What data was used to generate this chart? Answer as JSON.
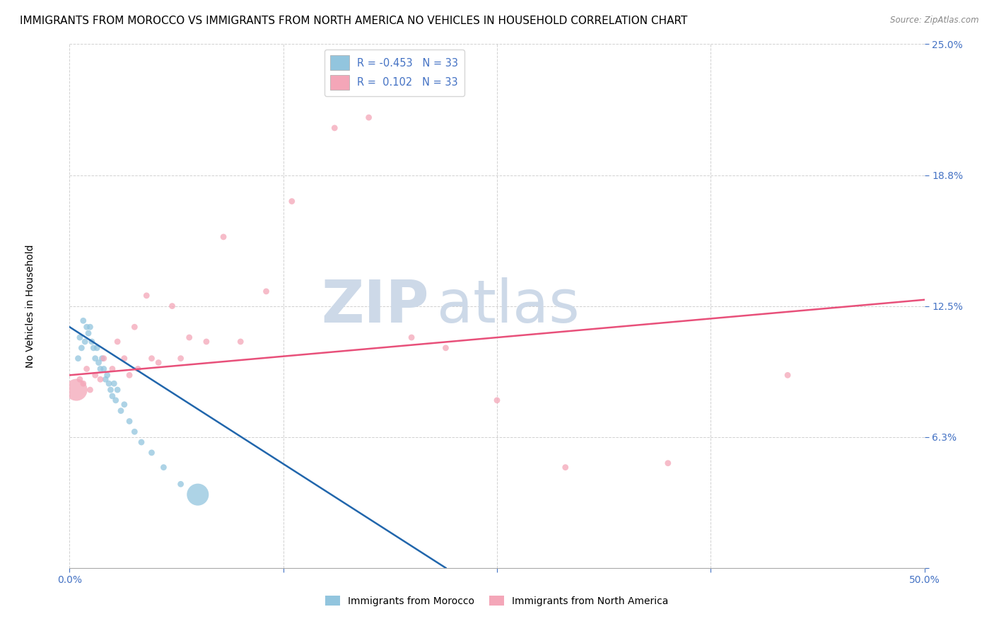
{
  "title": "IMMIGRANTS FROM MOROCCO VS IMMIGRANTS FROM NORTH AMERICA NO VEHICLES IN HOUSEHOLD CORRELATION CHART",
  "source": "Source: ZipAtlas.com",
  "ylabel_label": "No Vehicles in Household",
  "xlabel_label_blue": "Immigrants from Morocco",
  "xlabel_label_pink": "Immigrants from North America",
  "legend_blue_r": "-0.453",
  "legend_blue_n": "33",
  "legend_pink_r": "0.102",
  "legend_pink_n": "33",
  "xlim": [
    0.0,
    0.5
  ],
  "ylim": [
    0.0,
    0.25
  ],
  "blue_color": "#92c5de",
  "pink_color": "#f4a6b8",
  "blue_line_color": "#2166ac",
  "pink_line_color": "#e8507a",
  "watermark_zip": "ZIP",
  "watermark_atlas": "atlas",
  "grid_color": "#cccccc",
  "background_color": "#ffffff",
  "title_fontsize": 11,
  "axis_label_fontsize": 10,
  "tick_fontsize": 10,
  "tick_color": "#4472c4",
  "watermark_color": "#cdd9e8",
  "watermark_fontsize": 60,
  "blue_scatter_x": [
    0.005,
    0.006,
    0.007,
    0.008,
    0.009,
    0.01,
    0.011,
    0.012,
    0.013,
    0.014,
    0.015,
    0.016,
    0.017,
    0.018,
    0.019,
    0.02,
    0.021,
    0.022,
    0.023,
    0.024,
    0.025,
    0.026,
    0.027,
    0.028,
    0.03,
    0.032,
    0.035,
    0.038,
    0.042,
    0.048,
    0.055,
    0.065,
    0.075
  ],
  "blue_scatter_y": [
    0.1,
    0.11,
    0.105,
    0.118,
    0.108,
    0.115,
    0.112,
    0.115,
    0.108,
    0.105,
    0.1,
    0.105,
    0.098,
    0.095,
    0.1,
    0.095,
    0.09,
    0.092,
    0.088,
    0.085,
    0.082,
    0.088,
    0.08,
    0.085,
    0.075,
    0.078,
    0.07,
    0.065,
    0.06,
    0.055,
    0.048,
    0.04,
    0.035
  ],
  "blue_scatter_size": [
    40,
    40,
    40,
    40,
    40,
    40,
    40,
    40,
    40,
    40,
    40,
    40,
    40,
    40,
    40,
    40,
    40,
    40,
    40,
    40,
    40,
    40,
    40,
    40,
    40,
    40,
    40,
    40,
    40,
    40,
    40,
    40,
    500
  ],
  "pink_scatter_x": [
    0.004,
    0.006,
    0.008,
    0.01,
    0.012,
    0.015,
    0.018,
    0.02,
    0.025,
    0.028,
    0.032,
    0.035,
    0.038,
    0.04,
    0.045,
    0.048,
    0.052,
    0.06,
    0.065,
    0.07,
    0.08,
    0.09,
    0.1,
    0.115,
    0.13,
    0.155,
    0.175,
    0.2,
    0.22,
    0.25,
    0.29,
    0.35,
    0.42
  ],
  "pink_scatter_y": [
    0.085,
    0.09,
    0.088,
    0.095,
    0.085,
    0.092,
    0.09,
    0.1,
    0.095,
    0.108,
    0.1,
    0.092,
    0.115,
    0.095,
    0.13,
    0.1,
    0.098,
    0.125,
    0.1,
    0.11,
    0.108,
    0.158,
    0.108,
    0.132,
    0.175,
    0.21,
    0.215,
    0.11,
    0.105,
    0.08,
    0.048,
    0.05,
    0.092
  ],
  "pink_scatter_size": [
    500,
    40,
    40,
    40,
    40,
    40,
    40,
    40,
    40,
    40,
    40,
    40,
    40,
    40,
    40,
    40,
    40,
    40,
    40,
    40,
    40,
    40,
    40,
    40,
    40,
    40,
    40,
    40,
    40,
    40,
    40,
    40,
    40
  ],
  "blue_trend_x0": 0.0,
  "blue_trend_y0": 0.115,
  "blue_trend_x1": 0.22,
  "blue_trend_y1": 0.0,
  "pink_trend_x0": 0.0,
  "pink_trend_y0": 0.092,
  "pink_trend_x1": 0.5,
  "pink_trend_y1": 0.128
}
